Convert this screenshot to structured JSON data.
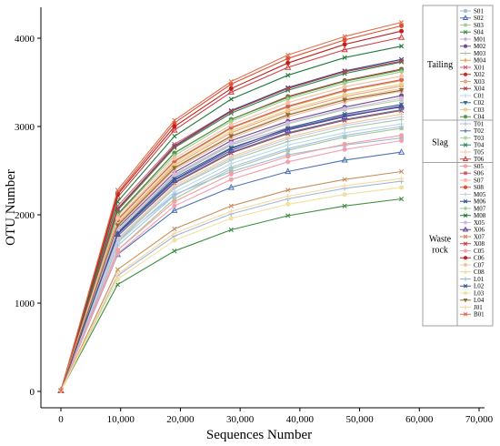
{
  "chart_data": {
    "type": "line",
    "xlabel": "Sequences Number",
    "ylabel": "OTU Number",
    "xlim": [
      0,
      70000
    ],
    "ylim": [
      0,
      4200
    ],
    "xticks": [
      0,
      10000,
      20000,
      30000,
      40000,
      50000,
      60000,
      70000
    ],
    "xtick_labels": [
      "0",
      "10,000",
      "20,000",
      "30,000",
      "40,000",
      "50,000",
      "60,000",
      "70,000"
    ],
    "yticks": [
      0,
      1000,
      2000,
      3000,
      4000
    ],
    "ytick_labels": [
      "0",
      "1000",
      "2000",
      "3000",
      "4000"
    ],
    "grid": false,
    "legend_position": "right",
    "x": [
      0,
      9500,
      19000,
      28500,
      38000,
      47500,
      57000
    ],
    "groups": [
      {
        "label": "Tailing",
        "start": 0,
        "end": 15
      },
      {
        "label": "Slag",
        "start": 16,
        "end": 21
      },
      {
        "label": "Waste\nrock",
        "start": 22,
        "end": 44
      }
    ],
    "series": [
      {
        "name": "S01",
        "color": "#9fb9d6",
        "marker": "circle",
        "values": [
          10,
          1700,
          2230,
          2490,
          2680,
          2790,
          2870
        ]
      },
      {
        "name": "S02",
        "color": "#4f72b5",
        "marker": "triangle",
        "values": [
          10,
          1550,
          2050,
          2310,
          2490,
          2620,
          2710
        ]
      },
      {
        "name": "S03",
        "color": "#a8c8a0",
        "marker": "square",
        "values": [
          10,
          1600,
          2180,
          2520,
          2730,
          2880,
          2980
        ]
      },
      {
        "name": "S04",
        "color": "#3d8f43",
        "marker": "x",
        "values": [
          10,
          1210,
          1590,
          1830,
          1990,
          2100,
          2180
        ]
      },
      {
        "name": "M01",
        "color": "#c8a8d8",
        "marker": "diamond",
        "values": [
          10,
          1800,
          2440,
          2790,
          2990,
          3130,
          3230
        ]
      },
      {
        "name": "M02",
        "color": "#6a4c93",
        "marker": "circle",
        "values": [
          10,
          1850,
          2480,
          2840,
          3060,
          3220,
          3350
        ]
      },
      {
        "name": "M03",
        "color": "#a5c9a5",
        "marker": "plus",
        "values": [
          10,
          1700,
          2300,
          2620,
          2830,
          2980,
          3080
        ]
      },
      {
        "name": "M04",
        "color": "#e0a040",
        "marker": "plus",
        "values": [
          10,
          1950,
          2600,
          2980,
          3220,
          3400,
          3520
        ]
      },
      {
        "name": "X01",
        "color": "#e06060",
        "marker": "x",
        "values": [
          10,
          2100,
          2800,
          3180,
          3440,
          3630,
          3760
        ]
      },
      {
        "name": "X02",
        "color": "#c03030",
        "marker": "circle",
        "values": [
          10,
          2000,
          2700,
          3080,
          3340,
          3520,
          3650
        ]
      },
      {
        "name": "X03",
        "color": "#f0a080",
        "marker": "circle",
        "values": [
          10,
          1900,
          2560,
          2930,
          3170,
          3340,
          3460
        ]
      },
      {
        "name": "X04",
        "color": "#b04040",
        "marker": "x",
        "values": [
          10,
          1760,
          2360,
          2700,
          2920,
          3070,
          3180
        ]
      },
      {
        "name": "C01",
        "color": "#b8d8e8",
        "marker": "plus",
        "values": [
          10,
          1680,
          2260,
          2580,
          2790,
          2930,
          3030
        ]
      },
      {
        "name": "C02",
        "color": "#3a6a9a",
        "marker": "triangle-down",
        "values": [
          10,
          1800,
          2420,
          2760,
          2970,
          3120,
          3220
        ]
      },
      {
        "name": "C03",
        "color": "#e8d088",
        "marker": "circle",
        "values": [
          10,
          1920,
          2580,
          2950,
          3190,
          3360,
          3480
        ]
      },
      {
        "name": "C04",
        "color": "#4a9a4a",
        "marker": "circle",
        "values": [
          10,
          2010,
          2700,
          3080,
          3330,
          3510,
          3640
        ]
      },
      {
        "name": "T01",
        "color": "#a8c0e0",
        "marker": "plus",
        "values": [
          10,
          1650,
          2220,
          2540,
          2750,
          2900,
          3000
        ]
      },
      {
        "name": "T02",
        "color": "#5a7ab0",
        "marker": "plus",
        "values": [
          10,
          1760,
          2370,
          2710,
          2930,
          3080,
          3190
        ]
      },
      {
        "name": "T03",
        "color": "#b0d8a0",
        "marker": "circle",
        "values": [
          10,
          1820,
          2450,
          2800,
          3030,
          3190,
          3300
        ]
      },
      {
        "name": "T04",
        "color": "#2e8b57",
        "marker": "x",
        "values": [
          10,
          2050,
          2760,
          3150,
          3410,
          3600,
          3730
        ]
      },
      {
        "name": "T05",
        "color": "#f0c890",
        "marker": "plus",
        "values": [
          10,
          1730,
          2330,
          2660,
          2880,
          3030,
          3140
        ]
      },
      {
        "name": "T06",
        "color": "#d04040",
        "marker": "triangle",
        "values": [
          10,
          2200,
          2960,
          3390,
          3670,
          3870,
          4010
        ]
      },
      {
        "name": "S05",
        "color": "#f0a0a0",
        "marker": "circle",
        "values": [
          10,
          1600,
          2150,
          2460,
          2660,
          2800,
          2900
        ]
      },
      {
        "name": "S06",
        "color": "#d06060",
        "marker": "circle",
        "values": [
          10,
          1940,
          2610,
          2990,
          3230,
          3410,
          3530
        ]
      },
      {
        "name": "S07",
        "color": "#f8b8a0",
        "marker": "circle",
        "values": [
          10,
          1870,
          2510,
          2870,
          3110,
          3280,
          3400
        ]
      },
      {
        "name": "S08",
        "color": "#e05030",
        "marker": "circle",
        "values": [
          10,
          2250,
          3040,
          3480,
          3770,
          3980,
          4140
        ]
      },
      {
        "name": "M05",
        "color": "#c8c8e8",
        "marker": "plus",
        "values": [
          10,
          1720,
          2310,
          2640,
          2860,
          3010,
          3110
        ]
      },
      {
        "name": "M06",
        "color": "#3050a0",
        "marker": "x",
        "values": [
          10,
          2070,
          2780,
          3180,
          3440,
          3630,
          3760
        ]
      },
      {
        "name": "M07",
        "color": "#a0d090",
        "marker": "diamond",
        "values": [
          10,
          1990,
          2670,
          3060,
          3310,
          3490,
          3620
        ]
      },
      {
        "name": "M08",
        "color": "#1f7a3a",
        "marker": "x",
        "values": [
          10,
          2150,
          2890,
          3310,
          3580,
          3780,
          3910
        ]
      },
      {
        "name": "X05",
        "color": "#d8b8e8",
        "marker": "circle",
        "values": [
          10,
          1830,
          2460,
          2810,
          3040,
          3200,
          3320
        ]
      },
      {
        "name": "X06",
        "color": "#6040a0",
        "marker": "triangle",
        "values": [
          10,
          1780,
          2390,
          2730,
          2960,
          3110,
          3230
        ]
      },
      {
        "name": "X07",
        "color": "#c89060",
        "marker": "x",
        "values": [
          10,
          1380,
          1840,
          2100,
          2280,
          2400,
          2490
        ]
      },
      {
        "name": "X08",
        "color": "#c04040",
        "marker": "x",
        "values": [
          10,
          2060,
          2770,
          3170,
          3430,
          3620,
          3740
        ]
      },
      {
        "name": "C05",
        "color": "#f0a0b0",
        "marker": "circle",
        "values": [
          10,
          1560,
          2100,
          2400,
          2600,
          2740,
          2840
        ]
      },
      {
        "name": "C06",
        "color": "#c02020",
        "marker": "circle",
        "values": [
          10,
          2230,
          3000,
          3430,
          3720,
          3930,
          4080
        ]
      },
      {
        "name": "C07",
        "color": "#f8c0a0",
        "marker": "circle",
        "values": [
          10,
          1960,
          2640,
          3020,
          3270,
          3450,
          3570
        ]
      },
      {
        "name": "C08",
        "color": "#f0d090",
        "marker": "plus",
        "values": [
          10,
          1890,
          2540,
          2900,
          3140,
          3310,
          3430
        ]
      },
      {
        "name": "L01",
        "color": "#a0b8d8",
        "marker": "plus",
        "values": [
          10,
          1310,
          1760,
          2010,
          2180,
          2300,
          2380
        ]
      },
      {
        "name": "L02",
        "color": "#3a5a90",
        "marker": "x",
        "values": [
          10,
          1790,
          2400,
          2750,
          2980,
          3140,
          3250
        ]
      },
      {
        "name": "L03",
        "color": "#f0e0a0",
        "marker": "circle",
        "values": [
          10,
          1270,
          1710,
          1960,
          2120,
          2230,
          2310
        ]
      },
      {
        "name": "L04",
        "color": "#8b6b3a",
        "marker": "triangle-down",
        "values": [
          10,
          1880,
          2530,
          2890,
          3130,
          3300,
          3410
        ]
      },
      {
        "name": "J01",
        "color": "#f8d8a0",
        "marker": "plus",
        "values": [
          10,
          1330,
          1790,
          2040,
          2210,
          2330,
          2410
        ]
      },
      {
        "name": "B01",
        "color": "#e07050",
        "marker": "x",
        "values": [
          10,
          2280,
          3070,
          3510,
          3810,
          4020,
          4180
        ]
      }
    ]
  }
}
